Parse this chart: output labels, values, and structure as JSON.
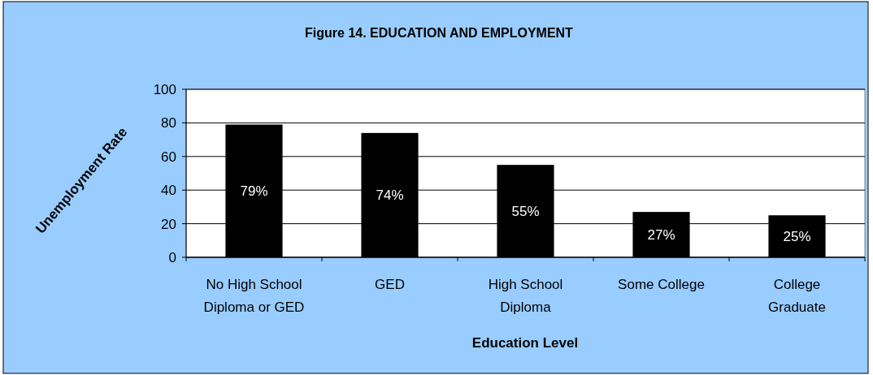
{
  "chart_data": {
    "type": "bar",
    "title": "Figure 14. EDUCATION AND EMPLOYMENT",
    "xlabel": "Education Level",
    "ylabel": "Unemployment Rate",
    "categories": [
      "No High School\nDiploma or GED",
      "GED",
      "High School\nDiploma",
      "Some College",
      "College\nGraduate"
    ],
    "values": [
      79,
      74,
      55,
      27,
      25
    ],
    "value_labels": [
      "79%",
      "74%",
      "55%",
      "27%",
      "25%"
    ],
    "color": "#000000",
    "ylim": [
      0,
      100
    ],
    "yticks": [
      0,
      20,
      40,
      60,
      80,
      100
    ],
    "grid": "y"
  }
}
